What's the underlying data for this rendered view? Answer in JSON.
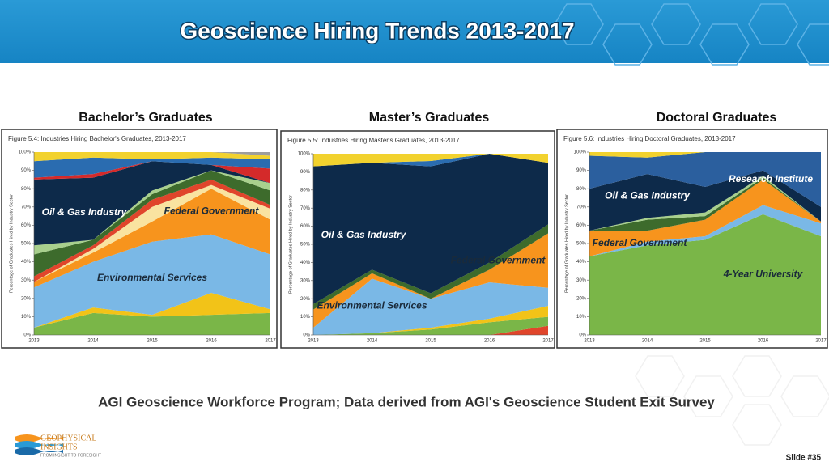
{
  "header": {
    "title": "Geoscience Hiring Trends 2013-2017"
  },
  "chart_data": [
    {
      "type": "area",
      "title": "Bachelor’s Graduates",
      "subtitle": "Figure 5.4: Industries Hiring Bachelor's Graduates, 2013-2017",
      "ylabel": "Percentage of Graduates Hired by Industry Sector",
      "categories": [
        "2013",
        "2014",
        "2015",
        "2016",
        "2017"
      ],
      "ylim": [
        0,
        100
      ],
      "yticks": [
        {
          "value": 0,
          "label": "0%"
        },
        {
          "value": 10,
          "label": "10%"
        },
        {
          "value": 20,
          "label": "20%"
        },
        {
          "value": 30,
          "label": "30%"
        },
        {
          "value": 40,
          "label": "40%"
        },
        {
          "value": 50,
          "label": "50%"
        },
        {
          "value": 60,
          "label": "60%"
        },
        {
          "value": 70,
          "label": "70%"
        },
        {
          "value": 80,
          "label": "80%"
        },
        {
          "value": 90,
          "label": "90%"
        },
        {
          "value": 100,
          "label": "100%"
        }
      ],
      "stacked": true,
      "grid": false,
      "series": [
        {
          "color": "#7ab648",
          "values": [
            4,
            12,
            10,
            11,
            12
          ]
        },
        {
          "color": "#f2c318",
          "values": [
            0,
            3,
            1,
            12,
            2
          ]
        },
        {
          "name": "Environmental Services",
          "color": "#7ab8e6",
          "values": [
            22,
            25,
            40,
            32,
            30
          ]
        },
        {
          "name": "Federal Government",
          "color": "#f7941d",
          "values": [
            3,
            5,
            11,
            25,
            19
          ]
        },
        {
          "color": "#f9e3a0",
          "values": [
            0,
            2,
            8,
            2,
            6
          ]
        },
        {
          "color": "#e0452b",
          "values": [
            3,
            2,
            4,
            3,
            2
          ]
        },
        {
          "color": "#3d6b2c",
          "values": [
            12,
            3,
            3,
            5,
            8
          ]
        },
        {
          "color": "#a8d08d",
          "values": [
            5,
            0,
            2,
            0,
            4
          ]
        },
        {
          "name": "Oil & Gas Industry",
          "color": "#0d2a4a",
          "values": [
            36,
            34,
            16,
            3,
            0
          ]
        },
        {
          "color": "#d42a2a",
          "values": [
            1,
            2,
            0,
            0,
            8
          ]
        },
        {
          "color": "#2a6cb0",
          "values": [
            9,
            9,
            1,
            4,
            5
          ]
        },
        {
          "color": "#f2d22e",
          "values": [
            5,
            3,
            4,
            3,
            2
          ]
        },
        {
          "color": "#9e9e9e",
          "values": [
            0,
            0,
            0,
            0,
            2
          ]
        }
      ]
    },
    {
      "type": "area",
      "title": "Master’s Graduates",
      "subtitle": "Figure 5.5: Industries Hiring Master's Graduates, 2013-2017",
      "ylabel": "Percentage of Graduates Hired by Industry Sector",
      "categories": [
        "2013",
        "2014",
        "2015",
        "2016",
        "2017"
      ],
      "ylim": [
        0,
        100
      ],
      "yticks": [
        {
          "value": 0,
          "label": "0%"
        },
        {
          "value": 10,
          "label": "10%"
        },
        {
          "value": 20,
          "label": "20%"
        },
        {
          "value": 30,
          "label": "30%"
        },
        {
          "value": 40,
          "label": "40%"
        },
        {
          "value": 50,
          "label": "50%"
        },
        {
          "value": 60,
          "label": "60%"
        },
        {
          "value": 70,
          "label": "70%"
        },
        {
          "value": 80,
          "label": "80%"
        },
        {
          "value": 90,
          "label": "90%"
        },
        {
          "value": 100,
          "label": "100%"
        }
      ],
      "stacked": true,
      "grid": false,
      "series": [
        {
          "color": "#e0452b",
          "values": [
            0,
            0,
            0,
            0,
            5
          ]
        },
        {
          "color": "#7ab648",
          "values": [
            0,
            1,
            3,
            7,
            5
          ]
        },
        {
          "color": "#f2c318",
          "values": [
            0,
            0,
            1,
            2,
            6
          ]
        },
        {
          "name": "Environmental Services",
          "color": "#7ab8e6",
          "values": [
            4,
            30,
            16,
            20,
            10
          ]
        },
        {
          "name": "Federal Government",
          "color": "#f7941d",
          "values": [
            10,
            3,
            0,
            7,
            30
          ]
        },
        {
          "color": "#3d6b2c",
          "values": [
            3,
            2,
            3,
            4,
            5
          ]
        },
        {
          "name": "Oil & Gas Industry",
          "color": "#0d2a4a",
          "values": [
            76,
            59,
            70,
            60,
            34
          ]
        },
        {
          "color": "#2a6cb0",
          "values": [
            0,
            0,
            3,
            0,
            0
          ]
        },
        {
          "color": "#f2d22e",
          "values": [
            7,
            5,
            4,
            0,
            5
          ]
        }
      ]
    },
    {
      "type": "area",
      "title": "Doctoral Graduates",
      "subtitle": "Figure 5.6: Industries Hiring Doctoral Graduates, 2013-2017",
      "ylabel": "Percentage of Graduates Hired by Industry Sector",
      "categories": [
        "2013",
        "2014",
        "2015",
        "2016",
        "2017"
      ],
      "ylim": [
        0,
        100
      ],
      "yticks": [
        {
          "value": 0,
          "label": "0%"
        },
        {
          "value": 10,
          "label": "10%"
        },
        {
          "value": 20,
          "label": "20%"
        },
        {
          "value": 30,
          "label": "30%"
        },
        {
          "value": 40,
          "label": "40%"
        },
        {
          "value": 50,
          "label": "50%"
        },
        {
          "value": 60,
          "label": "60%"
        },
        {
          "value": 70,
          "label": "70%"
        },
        {
          "value": 80,
          "label": "80%"
        },
        {
          "value": 90,
          "label": "90%"
        },
        {
          "value": 100,
          "label": "100%"
        }
      ],
      "stacked": true,
      "grid": false,
      "series": [
        {
          "name": "4-Year University",
          "color": "#7ab648",
          "values": [
            43,
            49,
            52,
            66,
            54
          ]
        },
        {
          "color": "#7ab8e6",
          "values": [
            0,
            2,
            2,
            5,
            7
          ]
        },
        {
          "name": "Federal Government",
          "color": "#f7941d",
          "values": [
            14,
            6,
            9,
            14,
            1
          ]
        },
        {
          "color": "#3d6b2c",
          "values": [
            0,
            6,
            2,
            1,
            0
          ]
        },
        {
          "color": "#a8d08d",
          "values": [
            0,
            1,
            2,
            1,
            0
          ]
        },
        {
          "name": "Oil & Gas Industry",
          "color": "#0d2a4a",
          "values": [
            23,
            24,
            14,
            3,
            8
          ]
        },
        {
          "name": "Research Institute",
          "color": "#2b5f9e",
          "values": [
            18,
            9,
            19,
            10,
            30
          ]
        },
        {
          "color": "#f2d22e",
          "values": [
            2,
            3,
            0,
            0,
            0
          ]
        }
      ]
    }
  ],
  "footer": {
    "source": "AGI Geoscience Workforce Program; Data derived from AGI's Geoscience Student Exit Survey"
  },
  "logo": {
    "lines": [
      "GEOPHYSICAL",
      "INSIGHTS"
    ],
    "tagline": "FROM INSIGHT TO FORESIGHT"
  },
  "slide_number": "Slide #35"
}
